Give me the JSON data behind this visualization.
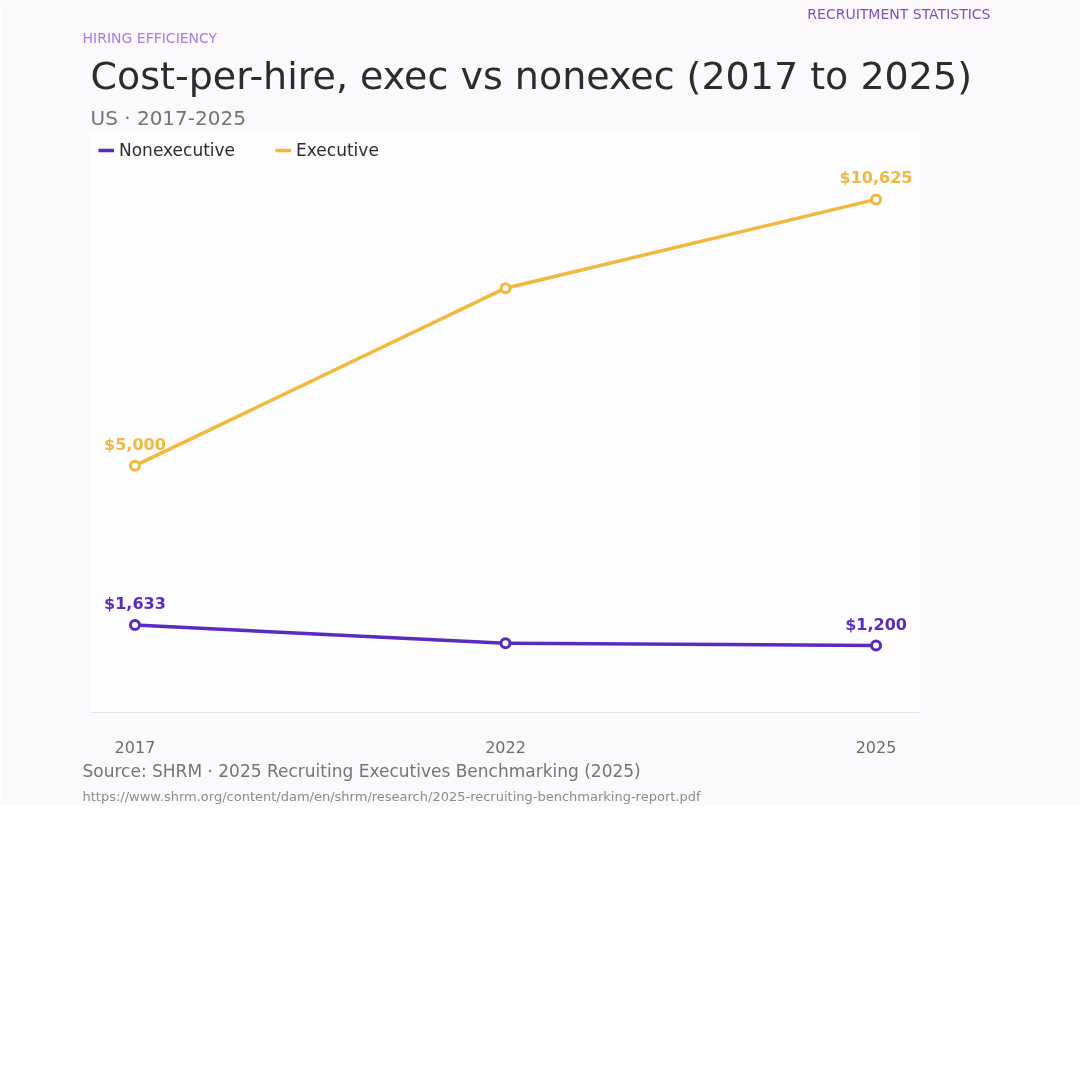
{
  "chart_data": {
    "type": "line",
    "title": "Cost-per-hire, exec vs nonexec (2017 to 2025)",
    "subtitle": "US · 2017-2025",
    "categories": [
      "2017",
      "2022",
      "2025"
    ],
    "series": [
      {
        "name": "Nonexecutive",
        "color": "#5b2bbf",
        "values": [
          1633,
          1250,
          1200
        ],
        "value_labels": [
          "$1,633",
          null,
          "$1,200"
        ]
      },
      {
        "name": "Executive",
        "color": "#f2b83c",
        "values": [
          5000,
          8750,
          10625
        ],
        "value_labels": [
          "$5,000",
          null,
          "$10,625"
        ]
      }
    ],
    "tick_labels": "x",
    "grid": false,
    "legend": "top left",
    "marker": "circle",
    "line_style": "solid",
    "annotations": [
      "RECRUITMENT STATISTICS",
      "HIRING EFFICIENCY",
      "Source: SHRM · 2025 Recruiting Executives Benchmarking (2025)",
      "https://www.shrm.org/content/dam/en/shrm/research/2025-recruiting-benchmarking-report.pdf"
    ]
  }
}
